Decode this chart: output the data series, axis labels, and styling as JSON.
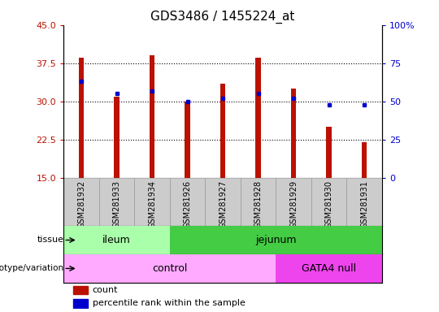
{
  "title": "GDS3486 / 1455224_at",
  "samples": [
    "GSM281932",
    "GSM281933",
    "GSM281934",
    "GSM281926",
    "GSM281927",
    "GSM281928",
    "GSM281929",
    "GSM281930",
    "GSM281931"
  ],
  "counts": [
    38.5,
    31.0,
    39.0,
    30.0,
    33.5,
    38.5,
    32.5,
    25.0,
    22.0
  ],
  "percentile_ranks_pct": [
    63.0,
    55.0,
    57.0,
    50.0,
    52.0,
    55.0,
    52.0,
    48.0,
    48.0
  ],
  "ylim_left": [
    15,
    45
  ],
  "ylim_right": [
    0,
    100
  ],
  "yticks_left": [
    15,
    22.5,
    30,
    37.5,
    45
  ],
  "yticks_right": [
    0,
    25,
    50,
    75,
    100
  ],
  "bar_color": "#bb1100",
  "dot_color": "#0000cc",
  "tissue_groups": {
    "ileum": [
      0,
      1,
      2
    ],
    "jejunum": [
      3,
      4,
      5,
      6,
      7,
      8
    ]
  },
  "genotype_groups": {
    "control": [
      0,
      1,
      2,
      3,
      4,
      5
    ],
    "GATA4 null": [
      6,
      7,
      8
    ]
  },
  "tissue_colors": {
    "ileum": "#aaffaa",
    "jejunum": "#44cc44"
  },
  "genotype_colors": {
    "control": "#ffaaff",
    "GATA4 null": "#ee44ee"
  },
  "grid_color": "#000000",
  "xtick_bg_color": "#cccccc",
  "bar_width": 0.15
}
